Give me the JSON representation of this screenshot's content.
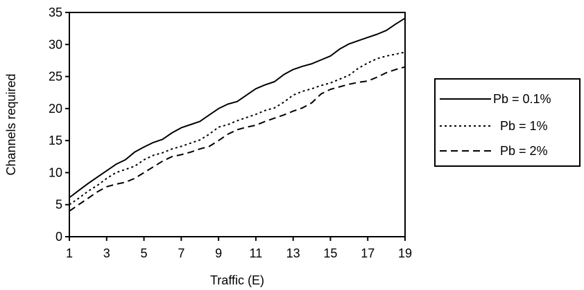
{
  "chart_data": {
    "type": "line",
    "xlabel": "Traffic (E)",
    "ylabel": "Channels required",
    "xlim": [
      1,
      19
    ],
    "ylim": [
      0,
      35
    ],
    "xticks": [
      1,
      3,
      5,
      7,
      9,
      11,
      13,
      15,
      17,
      19
    ],
    "yticks": [
      0,
      5,
      10,
      15,
      20,
      25,
      30,
      35
    ],
    "grid": false,
    "legend_position": "right",
    "series": [
      {
        "name": "Pb = 0.1%",
        "style": "solid",
        "x": [
          1,
          1.5,
          2,
          2.5,
          3,
          3.5,
          4,
          4.5,
          5,
          5.5,
          6,
          6.5,
          7,
          7.5,
          8,
          8.5,
          9,
          9.5,
          10,
          10.5,
          11,
          11.5,
          12,
          12.5,
          13,
          13.5,
          14,
          14.5,
          15,
          15.5,
          16,
          16.5,
          17,
          17.5,
          18,
          18.5,
          19
        ],
        "values": [
          6.1,
          7.2,
          8.3,
          9.3,
          10.3,
          11.3,
          12.0,
          13.2,
          14.0,
          14.7,
          15.2,
          16.2,
          17.0,
          17.5,
          18.0,
          19.0,
          20.0,
          20.7,
          21.1,
          22.1,
          23.1,
          23.7,
          24.2,
          25.3,
          26.1,
          26.6,
          27.0,
          27.6,
          28.2,
          29.3,
          30.1,
          30.6,
          31.1,
          31.6,
          32.2,
          33.2,
          34.1
        ]
      },
      {
        "name": "Pb = 1%",
        "style": "dotted",
        "x": [
          1,
          1.5,
          2,
          2.5,
          3,
          3.5,
          4,
          4.5,
          5,
          5.5,
          6,
          6.5,
          7,
          7.5,
          8,
          8.5,
          9,
          9.5,
          10,
          10.5,
          11,
          11.5,
          12,
          12.5,
          13,
          13.5,
          14,
          14.5,
          15,
          15.5,
          16,
          16.5,
          17,
          17.5,
          18,
          18.5,
          19
        ],
        "values": [
          5.0,
          6.0,
          7.1,
          8.0,
          9.1,
          10.0,
          10.5,
          11.0,
          12.0,
          12.7,
          13.1,
          13.7,
          14.1,
          14.6,
          15.1,
          16.0,
          17.1,
          17.5,
          18.1,
          18.6,
          19.1,
          19.7,
          20.1,
          21.0,
          22.1,
          22.7,
          23.1,
          23.6,
          24.0,
          24.6,
          25.2,
          26.3,
          27.1,
          27.8,
          28.2,
          28.5,
          28.8
        ]
      },
      {
        "name": "Pb = 2%",
        "style": "dashed",
        "x": [
          1,
          1.5,
          2,
          2.5,
          3,
          3.5,
          4,
          4.5,
          5,
          5.5,
          6,
          6.5,
          7,
          7.5,
          8,
          8.5,
          9,
          9.5,
          10,
          10.5,
          11,
          11.5,
          12,
          12.5,
          13,
          13.5,
          14,
          14.5,
          15,
          15.5,
          16,
          16.5,
          17,
          17.5,
          18,
          18.5,
          19
        ],
        "values": [
          4.0,
          5.0,
          6.0,
          7.0,
          7.8,
          8.2,
          8.5,
          9.1,
          10.0,
          10.9,
          11.8,
          12.5,
          12.8,
          13.2,
          13.7,
          14.1,
          15.0,
          16.0,
          16.7,
          17.1,
          17.4,
          18.0,
          18.5,
          19.0,
          19.6,
          20.1,
          20.9,
          22.3,
          23.0,
          23.4,
          23.8,
          24.1,
          24.3,
          24.9,
          25.6,
          26.1,
          26.5
        ]
      }
    ]
  }
}
